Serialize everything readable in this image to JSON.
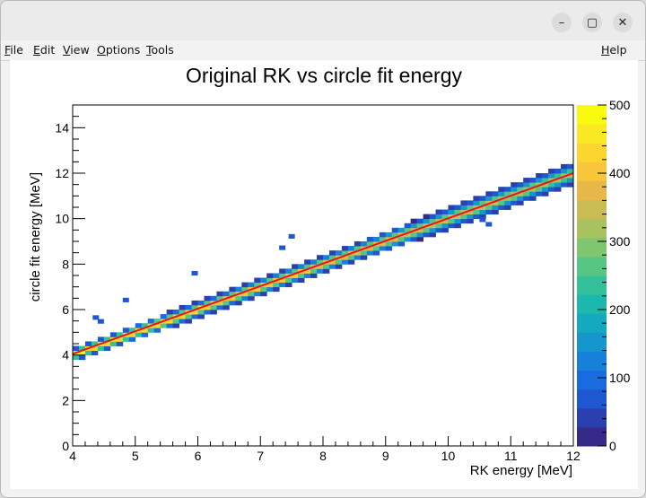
{
  "window": {
    "controls": {
      "minimize": "–",
      "maximize": "▢",
      "close": "✕"
    }
  },
  "menu": {
    "file": {
      "mnemonic": "F",
      "rest": "ile"
    },
    "edit": {
      "mnemonic": "E",
      "rest": "dit"
    },
    "view": {
      "mnemonic": "V",
      "rest": "iew"
    },
    "options": {
      "mnemonic": "O",
      "rest": "ptions"
    },
    "tools": {
      "mnemonic": "T",
      "rest": "ools"
    },
    "help": {
      "mnemonic": "H",
      "rest": "elp"
    }
  },
  "chart_data": {
    "type": "heatmap",
    "title": "Original RK vs circle fit energy",
    "xlabel": "RK energy [MeV]",
    "ylabel": "circle fit energy [MeV]",
    "xlim": [
      4,
      12
    ],
    "ylim": [
      0,
      15
    ],
    "x_ticks": [
      4,
      5,
      6,
      7,
      8,
      9,
      10,
      11,
      12
    ],
    "y_ticks": [
      0,
      2,
      4,
      6,
      8,
      10,
      12,
      14
    ],
    "colorbar": {
      "range": [
        0,
        500
      ],
      "ticks": [
        0,
        100,
        200,
        300,
        400,
        500
      ]
    },
    "ridge": {
      "x": [
        4,
        12
      ],
      "y": [
        4,
        12
      ],
      "description_points": "counts concentrated along y = x"
    },
    "fit_line": {
      "x": [
        4,
        12
      ],
      "y": [
        4.05,
        12.0
      ],
      "color": "#e8141c"
    },
    "outliers": [
      {
        "x": 4.37,
        "y": 5.65
      },
      {
        "x": 4.45,
        "y": 5.48
      },
      {
        "x": 4.85,
        "y": 6.42
      },
      {
        "x": 5.95,
        "y": 7.6
      },
      {
        "x": 7.35,
        "y": 8.72
      },
      {
        "x": 7.5,
        "y": 9.22
      },
      {
        "x": 10.55,
        "y": 9.95
      },
      {
        "x": 10.65,
        "y": 9.75
      }
    ],
    "grid": false,
    "colors": {
      "palette": [
        "#352a87",
        "#2a3fb0",
        "#1e57d0",
        "#1a6be0",
        "#1780d8",
        "#1596cc",
        "#13a9be",
        "#1bb8ad",
        "#34c19a",
        "#57c584",
        "#7fc66e",
        "#a7c25e",
        "#c9bc54",
        "#e6b84a",
        "#f8c53b",
        "#fbd62e",
        "#f9e823",
        "#f9fb0e"
      ],
      "fit": "#e8141c"
    }
  }
}
